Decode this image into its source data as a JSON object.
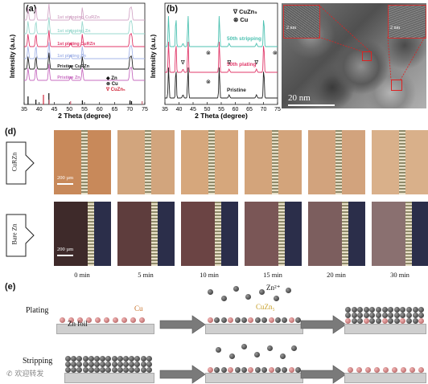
{
  "panels": {
    "a": {
      "letter": "(a)",
      "xlabel": "2 Theta (degree)",
      "ylabel": "Intensity (a.u.)",
      "xticks": [
        "35",
        "40",
        "45",
        "50",
        "55",
        "60",
        "65",
        "70",
        "75"
      ],
      "traces": [
        {
          "label": "1st stripping CuRZn",
          "color": "#d4a9c8"
        },
        {
          "label": "1st stripping Zn",
          "color": "#9bd9cf"
        },
        {
          "label": "1st plating CuRZn",
          "color": "#e0396a"
        },
        {
          "label": "1st plating Zn",
          "color": "#a6b6e8"
        },
        {
          "label": "Pristine CuRZn",
          "color": "#222222"
        },
        {
          "label": "Pristine Zn",
          "color": "#c76cc0"
        }
      ],
      "legend": [
        {
          "symbol": "◆",
          "label": "Zn",
          "color": "#111111"
        },
        {
          "symbol": "⊗",
          "label": "Cu",
          "color": "#111111"
        },
        {
          "symbol": "∇",
          "label": "CuZn₅",
          "color": "#d0263a"
        }
      ]
    },
    "b": {
      "letter": "(b)",
      "xlabel": "2 Theta (degree)",
      "ylabel": "Intensity (a.u.)",
      "xticks": [
        "35",
        "40",
        "45",
        "50",
        "55",
        "60",
        "65",
        "70",
        "75"
      ],
      "traces": [
        {
          "label": "50th stripping",
          "color": "#4cc1b1"
        },
        {
          "label": "50th plating",
          "color": "#e0396a"
        },
        {
          "label": "Pristine",
          "color": "#222222"
        }
      ],
      "legend": [
        {
          "symbol": "∇",
          "label": "CuZn₅"
        },
        {
          "symbol": "⊗",
          "label": "Cu"
        }
      ]
    },
    "c": {
      "letter": "(c)",
      "scalebar": "20 nm",
      "inset_scale": "2 nm"
    },
    "d": {
      "letter": "(d)",
      "rows": [
        {
          "label": "CuRZn",
          "scale": "200 µm"
        },
        {
          "label": "Bare Zn",
          "scale": "200 µm"
        }
      ],
      "times": [
        "0 min",
        "5 min",
        "10 min",
        "15 min",
        "20 min",
        "30 min"
      ]
    },
    "e": {
      "letter": "(e)",
      "plating": "Plating",
      "stripping": "Stripping",
      "cu_label": "Cu",
      "zn_foil": "Zn foil",
      "zn_ion": "Zn²⁺",
      "cuzn_label": "CuZn₅"
    }
  },
  "watermark": "欢迎转发"
}
